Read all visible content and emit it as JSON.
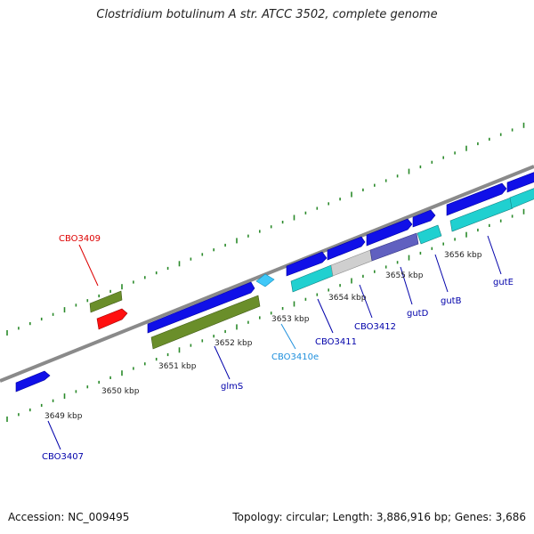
{
  "title": "Clostridium botulinum A str. ATCC 3502, complete genome",
  "footer": {
    "accession": "Accession: NC_009495",
    "stats": "Topology: circular; Length: 3,886,916 bp; Genes: 3,686"
  },
  "colors": {
    "backbone": "#8a8a8a",
    "tick": "#2a8a2a",
    "gene_blue": "#1010e8",
    "gene_cyan": "#20d0d0",
    "gene_olive": "#6a8e2a",
    "gene_red": "#ff1010",
    "gene_gray": "#cfcfcf",
    "gene_purple": "#6060c0",
    "gene_lightblue": "#40c8f8",
    "label_blue": "#0000aa",
    "label_red": "#dd0000",
    "label_cyan": "#2090dd"
  },
  "scale_labels": [
    "3649 kbp",
    "3650 kbp",
    "3651 kbp",
    "3652 kbp",
    "3653 kbp",
    "3654 kbp",
    "3655 kbp",
    "3656 kbp"
  ],
  "gene_labels": [
    "CBO3409",
    "CBO3407",
    "glmS",
    "CBO3410e",
    "CBO3411",
    "CBO3412",
    "gutD",
    "gutB",
    "gutE"
  ]
}
